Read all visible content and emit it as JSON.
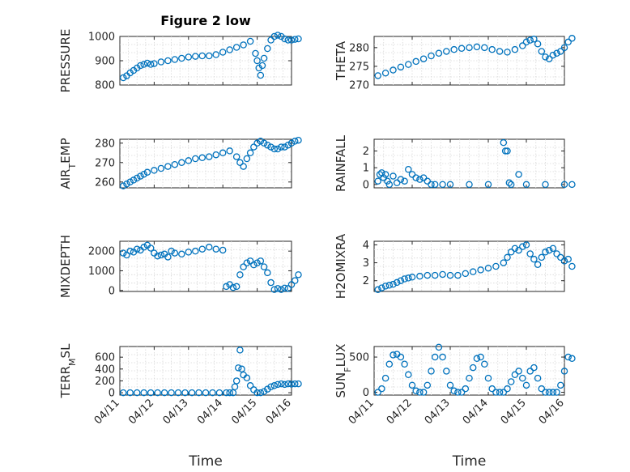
{
  "marker_color": "#0072BD",
  "grid_visible": true,
  "chart_data": [
    {
      "type": "scatter",
      "title": "Figure 2 low",
      "ylabel": "PRESSURE",
      "ylim": [
        800,
        1000
      ],
      "yticks": [
        "800",
        "900",
        "1000"
      ],
      "xlabel": "",
      "show_xticks": false,
      "x": [
        0.1,
        0.2,
        0.3,
        0.4,
        0.5,
        0.6,
        0.7,
        0.8,
        0.9,
        1.0,
        1.2,
        1.4,
        1.6,
        1.8,
        2.0,
        2.2,
        2.4,
        2.6,
        2.8,
        3.0,
        3.2,
        3.4,
        3.6,
        3.8,
        3.95,
        4.0,
        4.05,
        4.1,
        4.15,
        4.2,
        4.3,
        4.4,
        4.5,
        4.6,
        4.7,
        4.8,
        4.9,
        5.0,
        5.1,
        5.2
      ],
      "y": [
        830,
        838,
        850,
        860,
        870,
        880,
        885,
        890,
        885,
        888,
        895,
        900,
        905,
        910,
        915,
        918,
        920,
        920,
        925,
        935,
        945,
        955,
        965,
        980,
        930,
        900,
        870,
        840,
        880,
        910,
        950,
        985,
        1000,
        1005,
        1000,
        990,
        985,
        985,
        988,
        990
      ]
    },
    {
      "type": "scatter",
      "title": "",
      "ylabel": "THETA",
      "ylim": [
        270,
        283
      ],
      "yticks": [
        "270",
        "275",
        "280"
      ],
      "xlabel": "",
      "show_xticks": false,
      "x": [
        0.1,
        0.3,
        0.5,
        0.7,
        0.9,
        1.1,
        1.3,
        1.5,
        1.7,
        1.9,
        2.1,
        2.3,
        2.5,
        2.7,
        2.9,
        3.1,
        3.3,
        3.5,
        3.7,
        3.9,
        4.0,
        4.1,
        4.2,
        4.3,
        4.4,
        4.5,
        4.6,
        4.7,
        4.8,
        4.9,
        5.0,
        5.1,
        5.2
      ],
      "y": [
        272.5,
        273.2,
        274.0,
        274.8,
        275.5,
        276.3,
        277.0,
        277.8,
        278.5,
        279.0,
        279.5,
        279.8,
        280.0,
        280.2,
        280.0,
        279.5,
        279.0,
        278.8,
        279.5,
        280.5,
        281.5,
        282.0,
        282.3,
        281.0,
        279.0,
        277.5,
        277.0,
        278.0,
        278.5,
        279.0,
        280.0,
        281.5,
        282.5
      ]
    },
    {
      "type": "scatter",
      "title": "",
      "ylabel": "AIR_TEMP",
      "ylim": [
        257,
        282
      ],
      "yticks": [
        "260",
        "270",
        "280"
      ],
      "xlabel": "",
      "show_xticks": false,
      "x": [
        0.1,
        0.2,
        0.3,
        0.4,
        0.5,
        0.6,
        0.7,
        0.8,
        1.0,
        1.2,
        1.4,
        1.6,
        1.8,
        2.0,
        2.2,
        2.4,
        2.6,
        2.8,
        3.0,
        3.2,
        3.4,
        3.5,
        3.6,
        3.7,
        3.8,
        3.9,
        4.0,
        4.1,
        4.2,
        4.3,
        4.4,
        4.5,
        4.6,
        4.7,
        4.8,
        4.9,
        5.0,
        5.1,
        5.2
      ],
      "y": [
        258,
        259,
        260,
        261,
        262,
        263,
        264,
        265,
        266,
        267,
        268,
        269,
        270,
        271,
        272,
        272.5,
        273,
        274,
        275,
        276,
        273,
        270,
        268,
        272,
        275,
        278,
        280,
        281,
        280,
        279,
        278,
        277,
        277,
        278,
        278,
        279,
        280,
        281,
        281.5
      ]
    },
    {
      "type": "scatter",
      "title": "",
      "ylabel": "RAINFALL",
      "ylim": [
        -0.2,
        2.7
      ],
      "yticks": [
        "0",
        "1",
        "2"
      ],
      "xlabel": "",
      "show_xticks": false,
      "x": [
        0.1,
        0.15,
        0.2,
        0.25,
        0.3,
        0.35,
        0.4,
        0.5,
        0.6,
        0.7,
        0.8,
        0.9,
        1.0,
        1.1,
        1.2,
        1.3,
        1.4,
        1.5,
        1.6,
        1.8,
        2.0,
        2.5,
        3.0,
        3.4,
        3.45,
        3.5,
        3.55,
        3.6,
        3.8,
        4.0,
        4.5,
        5.0,
        5.2
      ],
      "y": [
        0.2,
        0.6,
        0.7,
        0.4,
        0.6,
        0.2,
        0,
        0.5,
        0.1,
        0.3,
        0.2,
        0.9,
        0.6,
        0.4,
        0.3,
        0.4,
        0.2,
        0,
        0,
        0,
        0,
        0,
        0,
        2.5,
        2.0,
        2.0,
        0.1,
        0,
        0.6,
        0,
        0,
        0,
        0
      ]
    },
    {
      "type": "scatter",
      "title": "",
      "ylabel": "MIXDEPTH",
      "ylim": [
        -50,
        2500
      ],
      "yticks": [
        "0",
        "1000",
        "2000"
      ],
      "xlabel": "",
      "show_xticks": false,
      "x": [
        0.1,
        0.2,
        0.3,
        0.4,
        0.5,
        0.6,
        0.7,
        0.8,
        0.9,
        1.0,
        1.1,
        1.2,
        1.3,
        1.4,
        1.5,
        1.6,
        1.8,
        2.0,
        2.2,
        2.4,
        2.6,
        2.8,
        3.0,
        3.1,
        3.2,
        3.3,
        3.4,
        3.5,
        3.6,
        3.7,
        3.8,
        3.9,
        4.0,
        4.1,
        4.2,
        4.3,
        4.4,
        4.5,
        4.6,
        4.7,
        4.8,
        4.9,
        5.0,
        5.1,
        5.2
      ],
      "y": [
        1900,
        1800,
        2000,
        1950,
        2100,
        2050,
        2200,
        2300,
        2150,
        1900,
        1750,
        1800,
        1850,
        1700,
        2000,
        1900,
        1850,
        1950,
        2000,
        2100,
        2200,
        2100,
        2050,
        200,
        300,
        150,
        200,
        800,
        1200,
        1400,
        1500,
        1300,
        1400,
        1500,
        1200,
        900,
        400,
        50,
        100,
        50,
        120,
        100,
        300,
        500,
        800
      ]
    },
    {
      "type": "scatter",
      "title": "",
      "ylabel": "H2OMIXRA",
      "ylim": [
        1.4,
        4.2
      ],
      "yticks": [
        "2",
        "3",
        "4"
      ],
      "xlabel": "",
      "show_xticks": false,
      "x": [
        0.1,
        0.2,
        0.3,
        0.4,
        0.5,
        0.6,
        0.7,
        0.8,
        0.9,
        1.0,
        1.2,
        1.4,
        1.6,
        1.8,
        2.0,
        2.2,
        2.4,
        2.6,
        2.8,
        3.0,
        3.2,
        3.4,
        3.5,
        3.6,
        3.7,
        3.8,
        3.9,
        4.0,
        4.1,
        4.2,
        4.3,
        4.4,
        4.5,
        4.6,
        4.7,
        4.8,
        4.9,
        5.0,
        5.1,
        5.2
      ],
      "y": [
        1.5,
        1.6,
        1.7,
        1.75,
        1.8,
        1.9,
        2.0,
        2.1,
        2.15,
        2.2,
        2.25,
        2.3,
        2.3,
        2.35,
        2.3,
        2.3,
        2.4,
        2.5,
        2.6,
        2.7,
        2.8,
        3.0,
        3.3,
        3.6,
        3.8,
        3.7,
        3.9,
        4.0,
        3.5,
        3.2,
        2.9,
        3.3,
        3.6,
        3.7,
        3.8,
        3.5,
        3.3,
        3.1,
        3.2,
        2.8
      ]
    },
    {
      "type": "scatter",
      "title": "",
      "ylabel": "TERR_MSL",
      "ylim": [
        -40,
        780
      ],
      "yticks": [
        "0",
        "200",
        "400",
        "600"
      ],
      "xlabel": "Time",
      "show_xticks": true,
      "xticks": [
        "04/11",
        "04/12",
        "04/13",
        "04/14",
        "04/15",
        "04/16"
      ],
      "x": [
        0.1,
        0.3,
        0.5,
        0.7,
        0.9,
        1.1,
        1.3,
        1.5,
        1.7,
        1.9,
        2.1,
        2.3,
        2.5,
        2.7,
        2.9,
        3.1,
        3.2,
        3.3,
        3.35,
        3.4,
        3.45,
        3.5,
        3.55,
        3.6,
        3.7,
        3.8,
        3.9,
        4.0,
        4.1,
        4.2,
        4.3,
        4.4,
        4.5,
        4.6,
        4.7,
        4.8,
        4.9,
        5.0,
        5.1,
        5.2
      ],
      "y": [
        0,
        0,
        0,
        0,
        0,
        0,
        0,
        0,
        0,
        0,
        0,
        0,
        0,
        0,
        0,
        0,
        0,
        0,
        100,
        200,
        420,
        720,
        400,
        300,
        250,
        120,
        50,
        0,
        0,
        20,
        60,
        100,
        120,
        140,
        150,
        140,
        150,
        145,
        150,
        150
      ]
    },
    {
      "type": "scatter",
      "title": "",
      "ylabel": "SUN_FLUX",
      "ylim": [
        -40,
        650
      ],
      "yticks": [
        "0",
        "500"
      ],
      "xlabel": "Time",
      "show_xticks": true,
      "xticks": [
        "04/11",
        "04/12",
        "04/13",
        "04/14",
        "04/15",
        "04/16"
      ],
      "x": [
        0.1,
        0.2,
        0.3,
        0.4,
        0.5,
        0.6,
        0.7,
        0.8,
        0.9,
        1.0,
        1.1,
        1.2,
        1.3,
        1.4,
        1.5,
        1.6,
        1.7,
        1.8,
        1.9,
        2.0,
        2.1,
        2.2,
        2.3,
        2.4,
        2.5,
        2.6,
        2.7,
        2.8,
        2.9,
        3.0,
        3.1,
        3.2,
        3.3,
        3.4,
        3.5,
        3.6,
        3.7,
        3.8,
        3.9,
        4.0,
        4.1,
        4.2,
        4.3,
        4.4,
        4.5,
        4.6,
        4.7,
        4.8,
        4.9,
        5.0,
        5.1,
        5.2
      ],
      "y": [
        0,
        50,
        200,
        400,
        530,
        540,
        500,
        400,
        250,
        100,
        20,
        0,
        0,
        100,
        300,
        500,
        640,
        500,
        300,
        100,
        20,
        0,
        0,
        50,
        200,
        350,
        480,
        500,
        400,
        200,
        50,
        0,
        0,
        0,
        50,
        150,
        250,
        300,
        200,
        100,
        300,
        350,
        200,
        50,
        0,
        0,
        0,
        0,
        100,
        300,
        500,
        480
      ]
    }
  ]
}
